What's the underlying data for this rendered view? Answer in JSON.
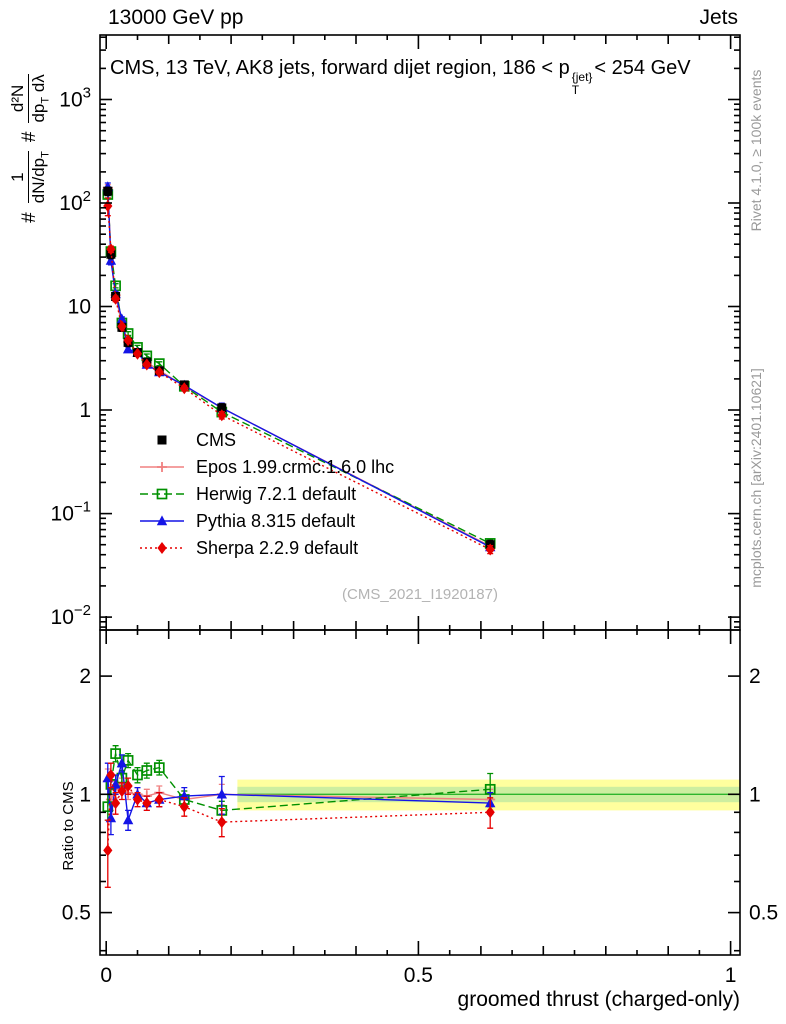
{
  "header": {
    "left": "13000 GeV pp",
    "right": "Jets"
  },
  "title": {
    "pre": "CMS, 13 TeV, AK8 jets, forward dijet region, 186 < p",
    "sup": "{jet}",
    "sub": "T",
    "post": "< 254 GeV"
  },
  "watermark": "(CMS_2021_I1920187)",
  "side_notes": {
    "top": "Rivet 4.1.0, ≥ 100k events",
    "bottom": "mcplots.cern.ch [arXiv:2401.10621]"
  },
  "axes": {
    "x_title": "groomed thrust (charged-only)",
    "ratio_title": "Ratio to CMS",
    "y_title_parts": {
      "hash1": "#",
      "frac1_num": "1",
      "frac1_den": "dN/dp~T~",
      "hash2": "#",
      "frac2_num": "d²N",
      "frac2_den": "dp~T~ dλ"
    }
  },
  "chart_data": {
    "type": "line",
    "title": "CMS, 13 TeV, AK8 jets, forward dijet region, 186 < pT(jet) < 254 GeV",
    "xlabel": "groomed thrust (charged-only)",
    "ylabel": "1/(dN/dpT) d²N/(dpT dλ)",
    "ratio_label": "Ratio to CMS",
    "x": [
      0.0025,
      0.0075,
      0.015,
      0.025,
      0.035,
      0.05,
      0.065,
      0.085,
      0.125,
      0.185,
      0.615
    ],
    "series": [
      {
        "id": "cms",
        "name": "CMS",
        "color": "#000000",
        "marker": "square-filled",
        "line": "none",
        "y": [
          130,
          32,
          12.5,
          6.3,
          4.5,
          3.6,
          2.9,
          2.4,
          1.75,
          1.05,
          0.05
        ],
        "yerr": [
          12,
          3,
          1.1,
          0.55,
          0.4,
          0.3,
          0.25,
          0.2,
          0.15,
          0.1,
          0.005
        ]
      },
      {
        "id": "epos",
        "name": "Epos 1.99.crmc.1.6.0 lhc",
        "color": "#f08080",
        "marker": "plus-open",
        "line": "solid",
        "ratio": [
          1.08,
          0.97,
          1.03,
          1.06,
          1.01,
          1.0,
          0.99,
          1.01,
          0.97,
          1.0,
          0.97
        ],
        "ratio_err": [
          0.08,
          0.06,
          0.05,
          0.04,
          0.04,
          0.04,
          0.04,
          0.04,
          0.05,
          0.06,
          0.06
        ]
      },
      {
        "id": "herwig",
        "name": "Herwig 7.2.1 default",
        "color": "#009000",
        "marker": "square-open",
        "line": "dashed",
        "ratio": [
          0.93,
          1.06,
          1.27,
          1.1,
          1.22,
          1.12,
          1.15,
          1.17,
          0.97,
          0.91,
          1.03
        ],
        "ratio_err": [
          0.07,
          0.06,
          0.06,
          0.05,
          0.05,
          0.05,
          0.05,
          0.05,
          0.05,
          0.05,
          0.1
        ]
      },
      {
        "id": "pythia",
        "name": "Pythia 8.315 default",
        "color": "#1414e6",
        "marker": "triangle-filled",
        "line": "solid",
        "ratio": [
          1.1,
          0.87,
          1.06,
          1.2,
          0.86,
          1.0,
          0.95,
          0.97,
          0.99,
          1.0,
          0.95
        ],
        "ratio_err": [
          0.1,
          0.08,
          0.06,
          0.06,
          0.05,
          0.04,
          0.04,
          0.04,
          0.05,
          0.11,
          0.06
        ]
      },
      {
        "id": "sherpa",
        "name": "Sherpa 2.2.9 default",
        "color": "#e60000",
        "marker": "diamond-filled",
        "line": "dotted",
        "ratio": [
          0.72,
          1.12,
          0.95,
          1.02,
          1.05,
          0.97,
          0.95,
          0.97,
          0.93,
          0.85,
          0.9
        ],
        "ratio_err": [
          0.14,
          0.08,
          0.06,
          0.05,
          0.05,
          0.04,
          0.04,
          0.04,
          0.05,
          0.07,
          0.08
        ]
      }
    ],
    "band": {
      "x0": 0.21,
      "x1": 1.015,
      "outer": 0.09,
      "inner": 0.045,
      "outer_color": "#ffff9e",
      "inner_color": "#cdeea0",
      "center_color": "#2db52d"
    },
    "layout": {
      "xmin": -0.01,
      "xmax": 1.015,
      "ymin": 0.0075,
      "ymax": 4200,
      "rmin": 0.39,
      "rmax": 2.62,
      "y_scale": "log",
      "ratio_scale": "log",
      "x_scale": "linear",
      "legend_position": "left-middle",
      "y_ticks": [
        {
          "v": 1000,
          "m": "10",
          "e": "3"
        },
        {
          "v": 100,
          "m": "10",
          "e": "2"
        },
        {
          "v": 10,
          "m": "10",
          "e": ""
        },
        {
          "v": 1,
          "m": "1",
          "e": ""
        },
        {
          "v": 0.1,
          "m": "10",
          "e": "−1"
        },
        {
          "v": 0.01,
          "m": "10",
          "e": "−2"
        }
      ],
      "r_ticks": [
        {
          "v": 2,
          "label": "2"
        },
        {
          "v": 1,
          "label": "1"
        },
        {
          "v": 0.5,
          "label": "0.5"
        }
      ],
      "x_ticks": [
        {
          "v": 0,
          "label": "0"
        },
        {
          "v": 0.5,
          "label": "0.5"
        },
        {
          "v": 1,
          "label": "1"
        }
      ]
    }
  }
}
